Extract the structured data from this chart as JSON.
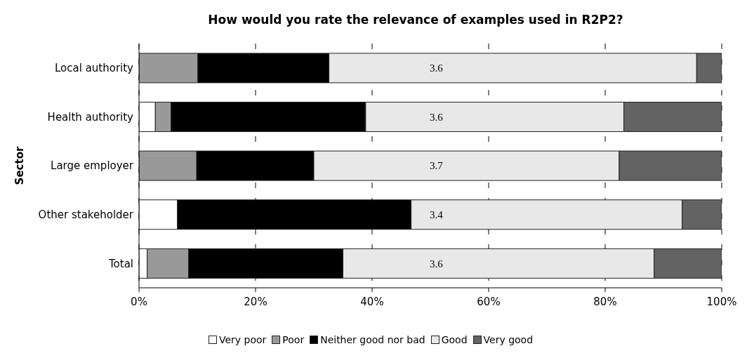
{
  "chart_data": {
    "type": "bar",
    "title": "How would you rate the relevance of examples used in R2P2?",
    "ylabel": "Sector",
    "orientation": "horizontal",
    "stacked": true,
    "categories": [
      "Local authority",
      "Health authority",
      "Large employer",
      "Other stakeholder",
      "Total"
    ],
    "series": [
      {
        "name": "Very poor",
        "color": "#ffffff",
        "values": [
          0,
          2.8,
          0,
          6.6,
          1.4
        ]
      },
      {
        "name": "Poor",
        "color": "#999999",
        "values": [
          10.1,
          2.7,
          9.9,
          0,
          7.1
        ]
      },
      {
        "name": "Neither good nor bad",
        "color": "#000000",
        "values": [
          22.5,
          33.4,
          20.1,
          40.1,
          26.5
        ]
      },
      {
        "name": "Good",
        "color": "#e8e8e8",
        "values": [
          63.1,
          44.3,
          52.4,
          46.5,
          53.4
        ]
      },
      {
        "name": "Very good",
        "color": "#636363",
        "values": [
          4.3,
          16.8,
          17.6,
          6.8,
          11.6
        ]
      }
    ],
    "xlim": [
      0,
      100
    ],
    "xticks": [
      {
        "value": 0,
        "label": "0%"
      },
      {
        "value": 20,
        "label": "20%"
      },
      {
        "value": 40,
        "label": "40%"
      },
      {
        "value": 60,
        "label": "60%"
      },
      {
        "value": 80,
        "label": "80%"
      },
      {
        "value": 100,
        "label": "100%"
      }
    ],
    "annotations": [
      "3.6",
      "3.6",
      "3.7",
      "3.4",
      "3.6"
    ],
    "grid": "x",
    "legend": "bottom"
  }
}
